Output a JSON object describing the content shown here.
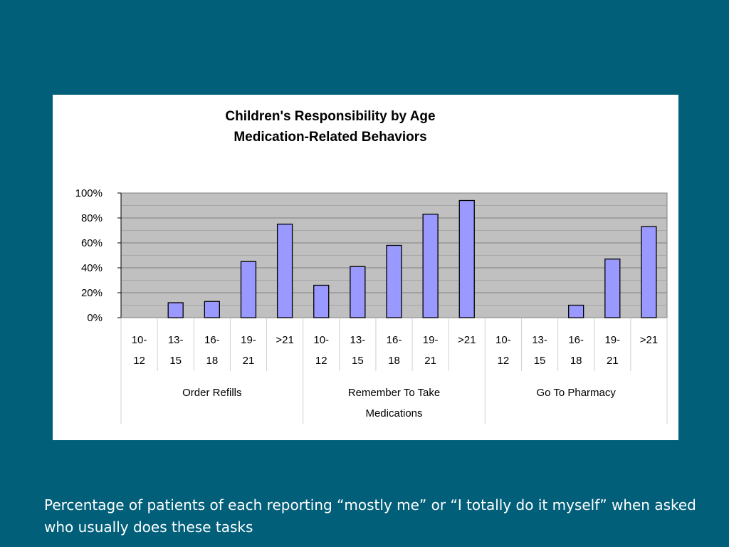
{
  "slide": {
    "caption": "Percentage of patients of each reporting “mostly me” or “I totally do it myself” when asked who usually does these tasks"
  },
  "colors": {
    "background": "#025f7a",
    "plot_area": "#c0c0c0",
    "bar_fill": "#9999ff",
    "bar_stroke": "#000000"
  },
  "chart_data": {
    "type": "bar",
    "title": "Children's Responsibility by Age",
    "subtitle": "Medication-Related Behaviors",
    "xlabel": "",
    "ylabel": "",
    "ylim": [
      0,
      100
    ],
    "y_ticks": [
      "0%",
      "20%",
      "40%",
      "60%",
      "80%",
      "100%"
    ],
    "grid": true,
    "legend": "none",
    "groups": [
      {
        "name": "Order Refills",
        "name_lines": [
          "Order Refills"
        ],
        "categories": [
          [
            "10-",
            "12"
          ],
          [
            "13-",
            "15"
          ],
          [
            "16-",
            "18"
          ],
          [
            "19-",
            "21"
          ],
          [
            ">21"
          ]
        ],
        "values": [
          0,
          12,
          13,
          45,
          75
        ]
      },
      {
        "name": "Remember To Take Medications",
        "name_lines": [
          "Remember To Take",
          "Medications"
        ],
        "categories": [
          [
            "10-",
            "12"
          ],
          [
            "13-",
            "15"
          ],
          [
            "16-",
            "18"
          ],
          [
            "19-",
            "21"
          ],
          [
            ">21"
          ]
        ],
        "values": [
          26,
          41,
          58,
          83,
          94
        ]
      },
      {
        "name": "Go To Pharmacy",
        "name_lines": [
          "Go To Pharmacy"
        ],
        "categories": [
          [
            "10-",
            "12"
          ],
          [
            "13-",
            "15"
          ],
          [
            "16-",
            "18"
          ],
          [
            "19-",
            "21"
          ],
          [
            ">21"
          ]
        ],
        "values": [
          0,
          0,
          10,
          47,
          73
        ]
      }
    ]
  }
}
